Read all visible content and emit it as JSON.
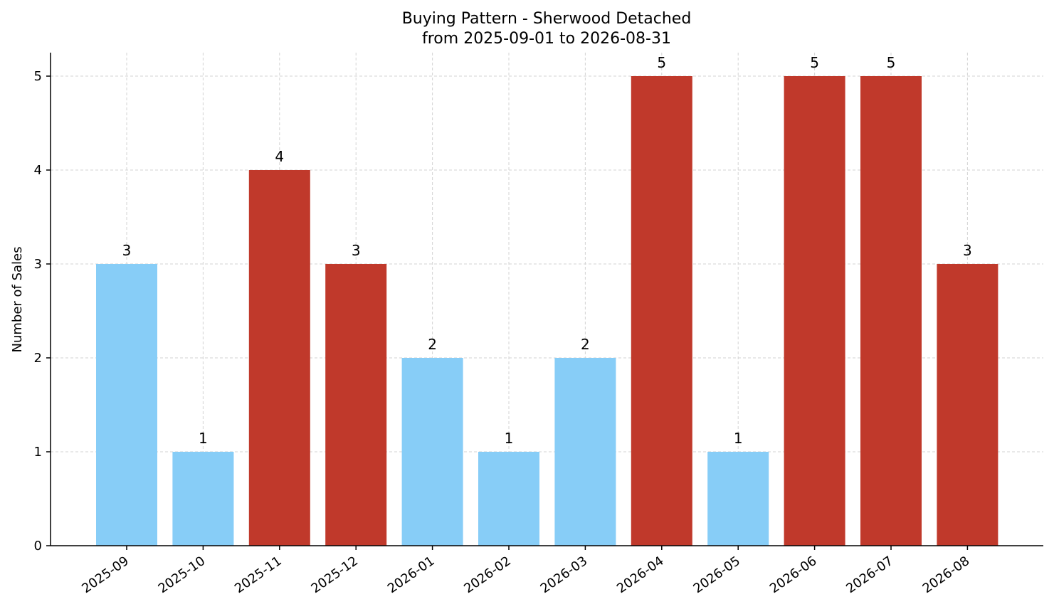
{
  "chart_data": {
    "type": "bar",
    "title": "Buying Pattern - Sherwood Detached",
    "subtitle": "from 2025-09-01 to 2026-08-31",
    "xlabel": "",
    "ylabel": "Number of Sales",
    "categories": [
      "2025-09",
      "2025-10",
      "2025-11",
      "2025-12",
      "2026-01",
      "2026-02",
      "2026-03",
      "2026-04",
      "2026-05",
      "2026-06",
      "2026-07",
      "2026-08"
    ],
    "values": [
      3,
      1,
      4,
      3,
      2,
      1,
      2,
      5,
      1,
      5,
      5,
      3
    ],
    "highlight": [
      false,
      false,
      true,
      true,
      false,
      false,
      false,
      true,
      false,
      true,
      true,
      true
    ],
    "ylim": [
      0,
      5.25
    ],
    "yticks": [
      0,
      1,
      2,
      3,
      4,
      5
    ],
    "grid": true,
    "legend": "none",
    "colors": {
      "normal": "#87cdf7",
      "high": "#c0392b"
    }
  }
}
